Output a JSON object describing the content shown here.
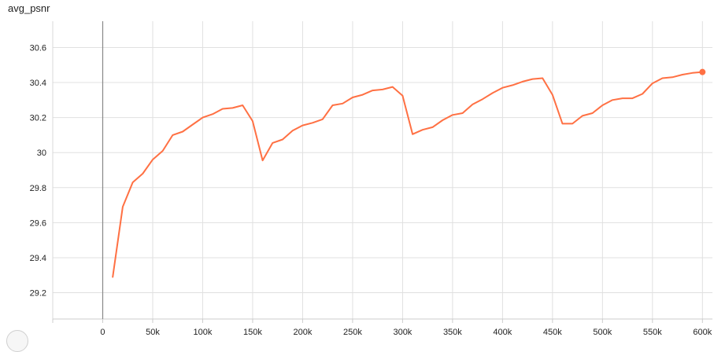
{
  "chart_data": {
    "type": "line",
    "title": "avg_psnr",
    "xlabel": "",
    "ylabel": "",
    "xlim": [
      -50000,
      610000
    ],
    "ylim": [
      29.05,
      30.75
    ],
    "x_ticks": [
      0,
      50000,
      100000,
      150000,
      200000,
      250000,
      300000,
      350000,
      400000,
      450000,
      500000,
      550000,
      600000
    ],
    "x_tick_labels": [
      "0",
      "50k",
      "100k",
      "150k",
      "200k",
      "250k",
      "300k",
      "350k",
      "400k",
      "450k",
      "500k",
      "550k",
      "600k"
    ],
    "y_ticks": [
      29.2,
      29.4,
      29.6,
      29.8,
      30.0,
      30.2,
      30.4,
      30.6
    ],
    "y_tick_labels": [
      "29.2",
      "29.4",
      "29.6",
      "29.8",
      "30",
      "30.2",
      "30.4",
      "30.6"
    ],
    "grid": true,
    "line_color": "#ff7043",
    "series": [
      {
        "x": [
          10000,
          20000,
          30000,
          40000,
          50000,
          60000,
          70000,
          80000,
          90000,
          100000,
          110000,
          120000,
          130000,
          140000,
          150000,
          160000,
          170000,
          180000,
          190000,
          200000,
          210000,
          220000,
          230000,
          240000,
          250000,
          260000,
          270000,
          280000,
          290000,
          300000,
          310000,
          320000,
          330000,
          340000,
          350000,
          360000,
          370000,
          380000,
          390000,
          400000,
          410000,
          420000,
          430000,
          440000,
          450000,
          460000,
          470000,
          480000,
          490000,
          500000,
          510000,
          520000,
          530000,
          540000,
          550000,
          560000,
          570000,
          580000,
          590000,
          600000
        ],
        "values": [
          29.29,
          29.69,
          29.83,
          29.88,
          29.96,
          30.01,
          30.1,
          30.12,
          30.16,
          30.2,
          30.22,
          30.25,
          30.255,
          30.27,
          30.18,
          29.955,
          30.055,
          30.075,
          30.125,
          30.155,
          30.17,
          30.19,
          30.27,
          30.28,
          30.315,
          30.33,
          30.355,
          30.36,
          30.375,
          30.325,
          30.105,
          30.13,
          30.145,
          30.185,
          30.215,
          30.225,
          30.275,
          30.305,
          30.34,
          30.37,
          30.385,
          30.405,
          30.42,
          30.425,
          30.33,
          30.165,
          30.165,
          30.21,
          30.225,
          30.27,
          30.3,
          30.31,
          30.31,
          30.335,
          30.395,
          30.425,
          30.43,
          30.445,
          30.455,
          30.46
        ]
      }
    ]
  }
}
